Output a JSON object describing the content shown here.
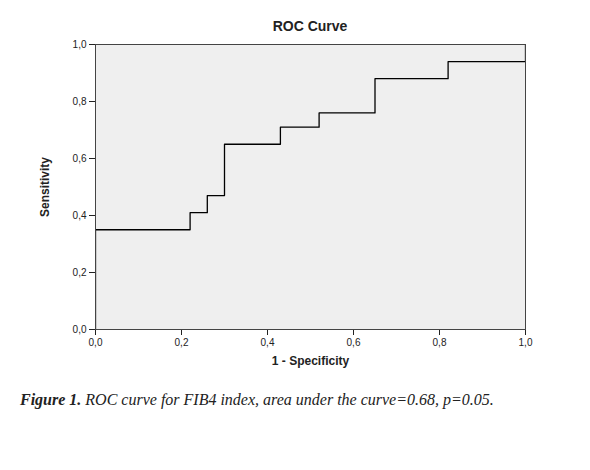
{
  "chart_data": {
    "type": "line",
    "title": "ROC Curve",
    "xlabel": "1 - Specificity",
    "ylabel": "Sensitivity",
    "x": [
      0,
      0,
      0.22,
      0.22,
      0.26,
      0.26,
      0.3,
      0.3,
      0.43,
      0.43,
      0.52,
      0.52,
      0.65,
      0.65,
      0.82,
      0.82,
      1.0,
      1.0
    ],
    "values": [
      0,
      0.35,
      0.35,
      0.41,
      0.41,
      0.47,
      0.47,
      0.65,
      0.65,
      0.71,
      0.71,
      0.76,
      0.76,
      0.88,
      0.88,
      0.94,
      0.94,
      1.0
    ],
    "color": "#000000",
    "line_style": "solid",
    "xlim": [
      0,
      1
    ],
    "ylim": [
      0,
      1
    ],
    "xticks": [
      {
        "value": 0,
        "label": "0,0"
      },
      {
        "value": 0.2,
        "label": "0,2"
      },
      {
        "value": 0.4,
        "label": "0,4"
      },
      {
        "value": 0.6,
        "label": "0,6"
      },
      {
        "value": 0.8,
        "label": "0,8"
      },
      {
        "value": 1,
        "label": "1,0"
      }
    ],
    "yticks": [
      {
        "value": 0,
        "label": "0,0"
      },
      {
        "value": 0.2,
        "label": "0,2"
      },
      {
        "value": 0.4,
        "label": "0,4"
      },
      {
        "value": 0.6,
        "label": "0,6"
      },
      {
        "value": 0.8,
        "label": "0,8"
      },
      {
        "value": 1,
        "label": "1,0"
      }
    ],
    "grid": false,
    "caption": {
      "label": "Figure 1.",
      "text": "ROC curve for FIB4 index, area under the curve=0.68, p=0.05."
    }
  }
}
